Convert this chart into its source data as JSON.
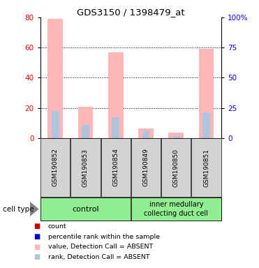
{
  "title": "GDS3150 / 1398479_at",
  "samples": [
    "GSM190852",
    "GSM190853",
    "GSM190854",
    "GSM190849",
    "GSM190850",
    "GSM190851"
  ],
  "value_absent": [
    79,
    20.5,
    57,
    6.5,
    3.5,
    59
  ],
  "rank_absent": [
    18,
    8.5,
    14,
    5,
    1.5,
    17
  ],
  "ylim_left": [
    0,
    80
  ],
  "ylim_right": [
    0,
    100
  ],
  "yticks_left": [
    0,
    20,
    40,
    60,
    80
  ],
  "yticks_right": [
    0,
    25,
    50,
    75,
    100
  ],
  "value_color": "#ffb6b6",
  "rank_color": "#b0c4de",
  "count_color": "#cc0000",
  "percentile_color": "#0000cc",
  "bg_color": "#d3d3d3",
  "group_color": "#90ee90",
  "groups": [
    {
      "label": "control",
      "start": 0,
      "end": 2
    },
    {
      "label": "inner medullary\ncollecting duct cell",
      "start": 3,
      "end": 5
    }
  ],
  "legend_items": [
    {
      "color": "#cc0000",
      "label": "count"
    },
    {
      "color": "#0000cc",
      "label": "percentile rank within the sample"
    },
    {
      "color": "#ffb6b6",
      "label": "value, Detection Call = ABSENT"
    },
    {
      "color": "#b0c4de",
      "label": "rank, Detection Call = ABSENT"
    }
  ]
}
